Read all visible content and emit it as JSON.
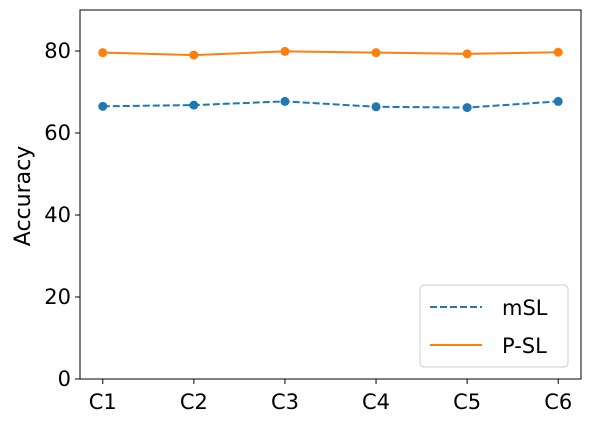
{
  "chart_data": {
    "type": "line",
    "title": "",
    "xlabel": "",
    "ylabel": "Accuracy",
    "categories": [
      "C1",
      "C2",
      "C3",
      "C4",
      "C5",
      "C6"
    ],
    "ylim": [
      0,
      90
    ],
    "yticks": [
      0,
      20,
      40,
      60,
      80
    ],
    "grid": false,
    "legend_position": "lower-right",
    "series": [
      {
        "name": "mSL",
        "values": [
          66.5,
          66.8,
          67.7,
          66.4,
          66.2,
          67.7
        ],
        "color": "#1f77b4",
        "line_style": "dashed",
        "marker": "circle"
      },
      {
        "name": "P-SL",
        "values": [
          79.6,
          79.0,
          79.9,
          79.6,
          79.3,
          79.7
        ],
        "color": "#ff7f0e",
        "line_style": "solid",
        "marker": "circle"
      }
    ]
  }
}
